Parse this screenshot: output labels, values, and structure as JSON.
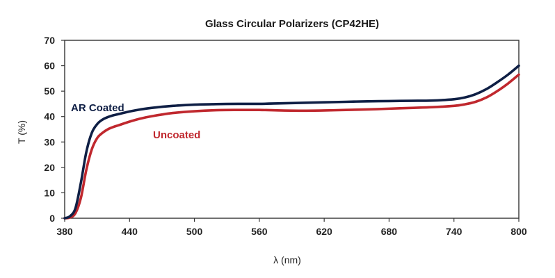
{
  "chart_data": {
    "type": "line",
    "title": "Glass Circular Polarizers (CP42HE)",
    "xlabel": "λ (nm)",
    "ylabel": "T (%)",
    "xlim": [
      380,
      800
    ],
    "ylim": [
      0,
      70
    ],
    "xticks": [
      380,
      440,
      500,
      560,
      620,
      680,
      740,
      800
    ],
    "yticks": [
      0,
      10,
      20,
      30,
      40,
      50,
      60,
      70
    ],
    "grid": false,
    "legend": "inline labels",
    "series": [
      {
        "name": "AR Coated",
        "color": "#0f1f45",
        "x": [
          380,
          385,
          390,
          395,
          400,
          405,
          410,
          415,
          420,
          425,
          430,
          440,
          450,
          460,
          480,
          500,
          520,
          540,
          560,
          580,
          600,
          620,
          640,
          660,
          680,
          700,
          720,
          740,
          750,
          760,
          770,
          780,
          790,
          800
        ],
        "y": [
          0,
          0.8,
          4,
          14,
          26,
          33.5,
          37,
          38.8,
          39.8,
          40.5,
          41,
          42,
          42.8,
          43.4,
          44.2,
          44.7,
          44.9,
          45,
          45,
          45.2,
          45.4,
          45.6,
          45.8,
          46,
          46.1,
          46.2,
          46.3,
          46.8,
          47.5,
          48.8,
          50.8,
          53.5,
          56.5,
          60
        ]
      },
      {
        "name": "Uncoated",
        "color": "#c0282e",
        "x": [
          380,
          385,
          390,
          395,
          400,
          405,
          410,
          415,
          420,
          425,
          430,
          440,
          450,
          460,
          480,
          500,
          520,
          540,
          560,
          580,
          600,
          620,
          640,
          660,
          680,
          700,
          720,
          740,
          750,
          760,
          770,
          780,
          790,
          800
        ],
        "y": [
          0,
          0.3,
          2,
          8,
          19,
          27,
          31.5,
          33.6,
          35,
          35.9,
          36.6,
          38,
          39.2,
          40.1,
          41.4,
          42.1,
          42.5,
          42.6,
          42.6,
          42.4,
          42.3,
          42.4,
          42.6,
          42.8,
          43.1,
          43.4,
          43.7,
          44.2,
          44.8,
          45.8,
          47.5,
          50,
          53,
          56.5
        ]
      }
    ]
  }
}
